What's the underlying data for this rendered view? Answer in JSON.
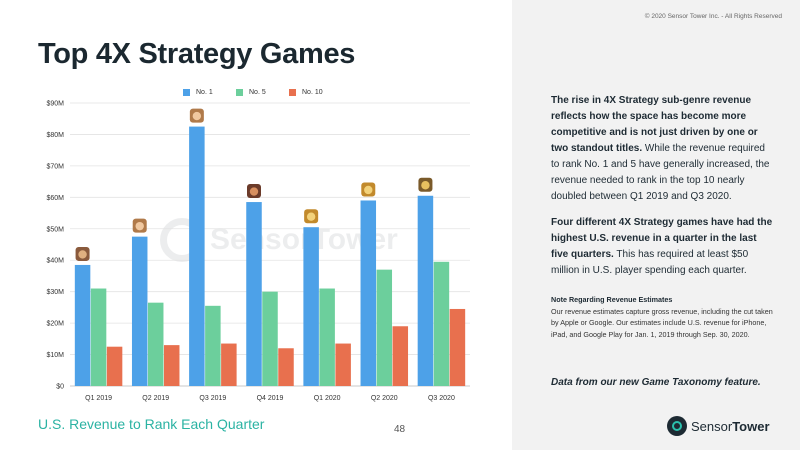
{
  "page": {
    "title": "Top 4X Strategy Games",
    "subtitle": "U.S. Revenue to Rank Each Quarter",
    "page_number": "48",
    "copyright": "© 2020 Sensor Tower Inc. - All Rights Reserved",
    "watermark": "SensorTower",
    "logo": {
      "part1": "Sensor",
      "part2": "Tower",
      "icon": "sensor-tower-logo-icon"
    }
  },
  "sidebar": {
    "p1_bold": "The rise in 4X Strategy sub-genre revenue reflects how the space has become more competitive and is not just driven by one or two standout titles.",
    "p1_rest": " While the revenue required to rank No. 1 and 5 have generally increased, the revenue needed to rank in the top 10 nearly doubled between Q1 2019 and Q3 2020.",
    "p2_bold": "Four different 4X Strategy games have had the highest U.S. revenue in a quarter in the last five quarters.",
    "p2_rest": " This has required at least $50 million in U.S. player spending each quarter.",
    "note_heading": "Note Regarding Revenue Estimates",
    "note_body": "Our revenue estimates capture gross revenue, including the cut taken by Apple or Google. Our estimates include U.S. revenue for iPhone, iPad, and Google Play for Jan. 1, 2019 through Sep. 30, 2020.",
    "tagline": "Data from our new Game Taxonomy feature."
  },
  "colors": {
    "no1": "#4da1e8",
    "no5": "#6ccf9c",
    "no10": "#e8704e",
    "grid": "#e3e3e3",
    "axis_text": "#333333"
  },
  "chart_data": {
    "type": "bar",
    "categories": [
      "Q1 2019",
      "Q2 2019",
      "Q3 2019",
      "Q4 2019",
      "Q1 2020",
      "Q2 2020",
      "Q3 2020"
    ],
    "series": [
      {
        "name": "No. 1",
        "values": [
          38.5,
          47.5,
          82.5,
          58.5,
          50.5,
          59,
          60.5
        ]
      },
      {
        "name": "No. 5",
        "values": [
          31,
          26.5,
          25.5,
          30,
          31,
          37,
          39.5
        ]
      },
      {
        "name": "No. 10",
        "values": [
          12.5,
          13,
          13.5,
          12,
          13.5,
          19,
          24.5
        ]
      }
    ],
    "ylim": [
      0,
      90
    ],
    "yticks": [
      "$0",
      "$10M",
      "$20M",
      "$30M",
      "$40M",
      "$50M",
      "$60M",
      "$70M",
      "$80M",
      "$90M"
    ],
    "grid": true,
    "legend_position": "top-center",
    "top_game_icons": [
      "game-icon-a",
      "game-icon-b",
      "game-icon-b",
      "game-icon-c",
      "game-icon-d",
      "game-icon-d",
      "game-icon-e"
    ]
  }
}
